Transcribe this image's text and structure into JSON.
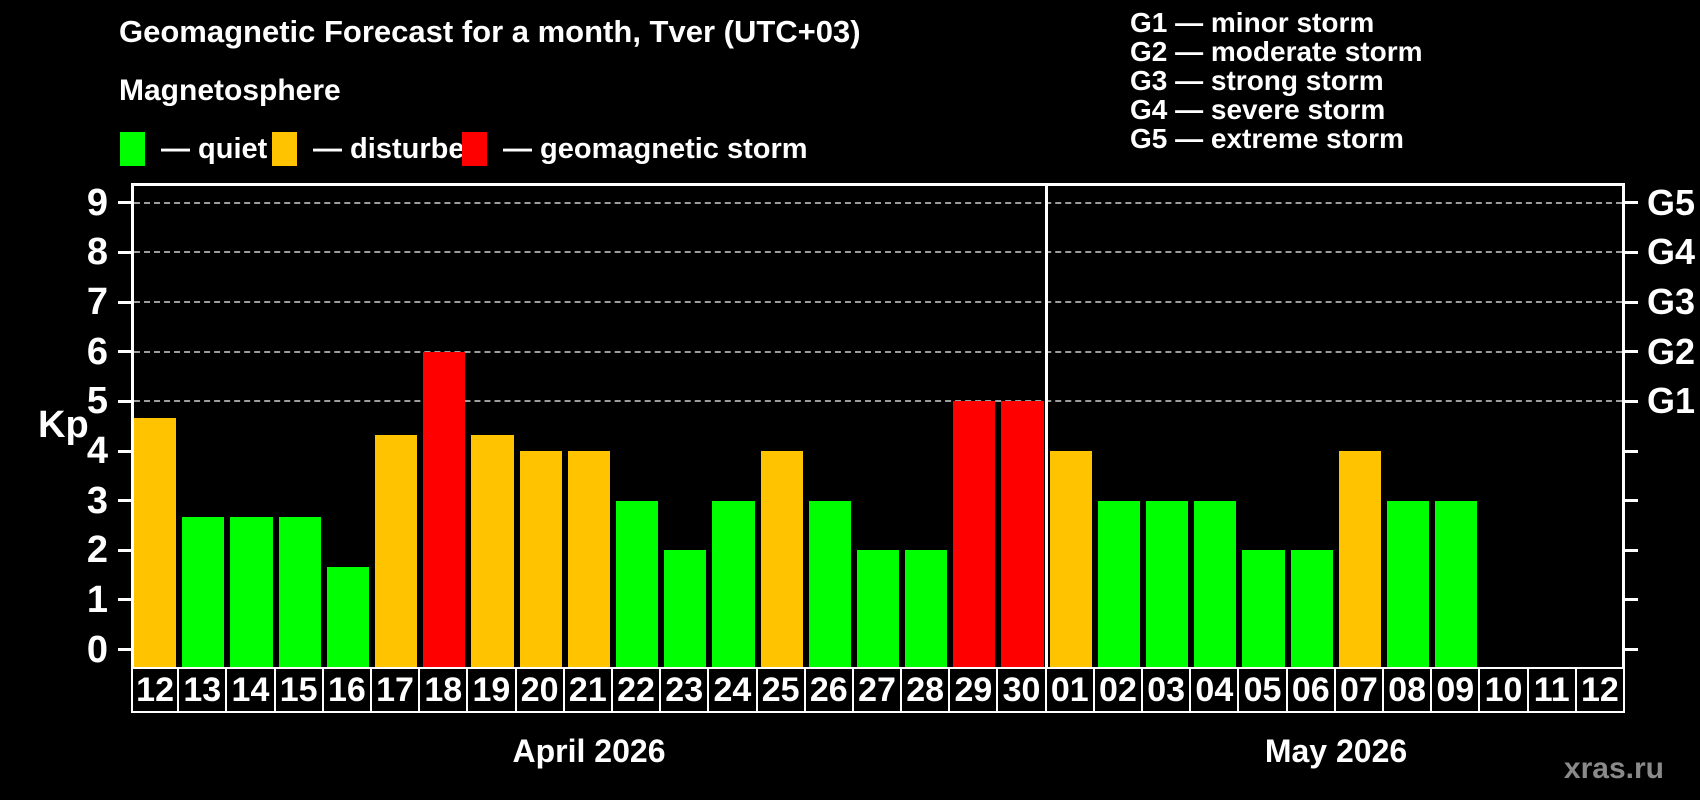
{
  "title": "Geomagnetic Forecast for a month, Tver (UTC+03)",
  "subtitle": "Magnetosphere",
  "kp_axis_label": "Kp",
  "watermark": "xras.ru",
  "legend": {
    "items": [
      {
        "key": "quiet",
        "label": "— quiet"
      },
      {
        "key": "disturbed",
        "label": "— disturbed"
      },
      {
        "key": "storm",
        "label": "— geomagnetic storm"
      }
    ]
  },
  "storm_scale": {
    "items": [
      "G1 — minor storm",
      "G2 — moderate storm",
      "G3 — strong storm",
      "G4 — severe storm",
      "G5 — extreme storm"
    ]
  },
  "chart_data": {
    "type": "bar",
    "ylabel": "Kp",
    "ylim": [
      -0.35,
      9.4
    ],
    "yticks": [
      0,
      1,
      2,
      3,
      4,
      5,
      6,
      7,
      8,
      9
    ],
    "gridlines": [
      5,
      6,
      7,
      8,
      9
    ],
    "grid": true,
    "right_axis_labels": [
      {
        "kp": 5,
        "label": "G1"
      },
      {
        "kp": 6,
        "label": "G2"
      },
      {
        "kp": 7,
        "label": "G3"
      },
      {
        "kp": 8,
        "label": "G4"
      },
      {
        "kp": 9,
        "label": "G5"
      }
    ],
    "colors": {
      "quiet": "#00ff00",
      "disturbed": "#ffc300",
      "storm": "#ff0000"
    },
    "months": [
      {
        "label": "April 2026",
        "key": "apr",
        "days": [
          {
            "day": "12",
            "kp": 4.67,
            "status": "disturbed"
          },
          {
            "day": "13",
            "kp": 2.67,
            "status": "quiet"
          },
          {
            "day": "14",
            "kp": 2.67,
            "status": "quiet"
          },
          {
            "day": "15",
            "kp": 2.67,
            "status": "quiet"
          },
          {
            "day": "16",
            "kp": 1.67,
            "status": "quiet"
          },
          {
            "day": "17",
            "kp": 4.33,
            "status": "disturbed"
          },
          {
            "day": "18",
            "kp": 6,
            "status": "storm"
          },
          {
            "day": "19",
            "kp": 4.33,
            "status": "disturbed"
          },
          {
            "day": "20",
            "kp": 4,
            "status": "disturbed"
          },
          {
            "day": "21",
            "kp": 4,
            "status": "disturbed"
          },
          {
            "day": "22",
            "kp": 3,
            "status": "quiet"
          },
          {
            "day": "23",
            "kp": 2,
            "status": "quiet"
          },
          {
            "day": "24",
            "kp": 3,
            "status": "quiet"
          },
          {
            "day": "25",
            "kp": 4,
            "status": "disturbed"
          },
          {
            "day": "26",
            "kp": 3,
            "status": "quiet"
          },
          {
            "day": "27",
            "kp": 2,
            "status": "quiet"
          },
          {
            "day": "28",
            "kp": 2,
            "status": "quiet"
          },
          {
            "day": "29",
            "kp": 5,
            "status": "storm"
          },
          {
            "day": "30",
            "kp": 5,
            "status": "storm"
          }
        ]
      },
      {
        "label": "May 2026",
        "key": "may",
        "days": [
          {
            "day": "01",
            "kp": 4,
            "status": "disturbed"
          },
          {
            "day": "02",
            "kp": 3,
            "status": "quiet"
          },
          {
            "day": "03",
            "kp": 3,
            "status": "quiet"
          },
          {
            "day": "04",
            "kp": 3,
            "status": "quiet"
          },
          {
            "day": "05",
            "kp": 2,
            "status": "quiet"
          },
          {
            "day": "06",
            "kp": 2,
            "status": "quiet"
          },
          {
            "day": "07",
            "kp": 4,
            "status": "disturbed"
          },
          {
            "day": "08",
            "kp": 3,
            "status": "quiet"
          },
          {
            "day": "09",
            "kp": 3,
            "status": "quiet"
          },
          {
            "day": "10",
            "kp": null,
            "status": null
          },
          {
            "day": "11",
            "kp": null,
            "status": null
          },
          {
            "day": "12",
            "kp": null,
            "status": null
          }
        ]
      }
    ]
  }
}
